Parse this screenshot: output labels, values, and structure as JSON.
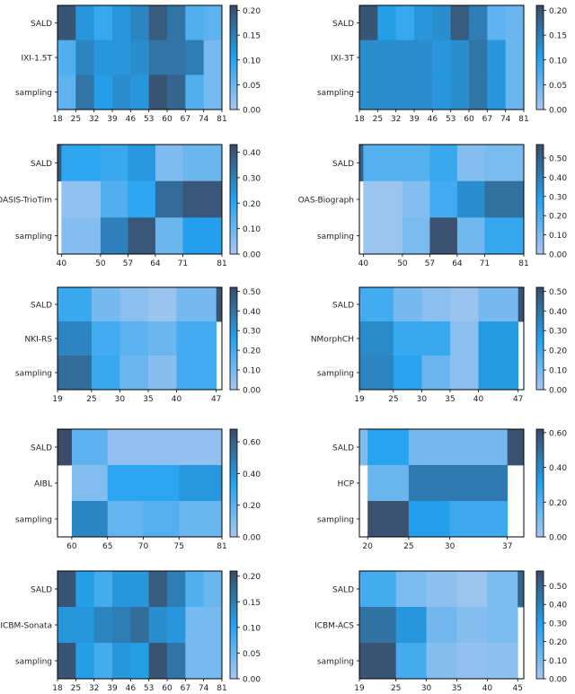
{
  "colors": {
    "low": "#a9c8ef",
    "mid": "#24a2ef",
    "high": "#3c4c66",
    "border": "#000000"
  },
  "chart_data": [
    {
      "type": "heatmap",
      "rows": [
        "SALD",
        "IXI-1.5T",
        "sampling"
      ],
      "x_edges": [
        18,
        25,
        32,
        39,
        46,
        53,
        60,
        67,
        74,
        81
      ],
      "x_ticks": [
        "18",
        "25",
        "32",
        "39",
        "46",
        "53",
        "60",
        "67",
        "74",
        "81"
      ],
      "colorbar_ticks": [
        "0.00",
        "0.05",
        "0.10",
        "0.15",
        "0.20"
      ],
      "vmax": 0.21,
      "values": [
        [
          0.2,
          0.12,
          0.09,
          0.12,
          0.14,
          0.19,
          0.16,
          0.07,
          0.06
        ],
        [
          0.07,
          0.14,
          0.12,
          0.12,
          0.13,
          0.16,
          0.16,
          0.15,
          0.04
        ],
        [
          0.06,
          0.16,
          0.11,
          0.13,
          0.12,
          0.2,
          0.18,
          0.07,
          0.04
        ]
      ]
    },
    {
      "type": "heatmap",
      "rows": [
        "SALD",
        "IXI-3T",
        "sampling"
      ],
      "x_edges": [
        18,
        25,
        32,
        39,
        46,
        53,
        60,
        67,
        74,
        81
      ],
      "x_ticks": [
        "18",
        "25",
        "32",
        "39",
        "46",
        "53",
        "60",
        "67",
        "74",
        "81"
      ],
      "colorbar_ticks": [
        "0.00",
        "0.05",
        "0.10",
        "0.15",
        "0.20"
      ],
      "vmax": 0.21,
      "values": [
        [
          0.2,
          0.11,
          0.09,
          0.12,
          0.13,
          0.19,
          0.15,
          0.06,
          0.05
        ],
        [
          0.13,
          0.13,
          0.13,
          0.13,
          0.12,
          0.13,
          0.16,
          0.12,
          0.05
        ],
        [
          0.13,
          0.13,
          0.13,
          0.13,
          0.12,
          0.13,
          0.16,
          0.12,
          0.05
        ]
      ]
    },
    {
      "type": "heatmap",
      "rows": [
        "SALD",
        "OASIS-TrioTim",
        "sampling"
      ],
      "x_edges": [
        39,
        40,
        50,
        57,
        64,
        71,
        81
      ],
      "x_ticks": [
        "40",
        "50",
        "57",
        "64",
        "71",
        "81"
      ],
      "colorbar_ticks": [
        "0.00",
        "0.10",
        "0.20",
        "0.30",
        "0.40"
      ],
      "vmax": 0.43,
      "values": [
        [
          0.4,
          0.2,
          0.18,
          0.24,
          0.07,
          0.1
        ],
        [
          null,
          0.04,
          0.14,
          0.2,
          0.35,
          0.4
        ],
        [
          null,
          0.06,
          0.3,
          0.4,
          0.1,
          0.22
        ]
      ]
    },
    {
      "type": "heatmap",
      "rows": [
        "SALD",
        "OAS-Biograph",
        "sampling"
      ],
      "x_edges": [
        39,
        40,
        50,
        57,
        64,
        71,
        81
      ],
      "x_ticks": [
        "40",
        "50",
        "57",
        "64",
        "71",
        "81"
      ],
      "colorbar_ticks": [
        "0.00",
        "0.10",
        "0.20",
        "0.30",
        "0.40",
        "0.50"
      ],
      "vmax": 0.57,
      "values": [
        [
          0.5,
          0.18,
          0.18,
          0.24,
          0.08,
          0.1
        ],
        [
          null,
          0.03,
          0.08,
          0.22,
          0.35,
          0.45
        ],
        [
          null,
          0.03,
          0.1,
          0.55,
          0.12,
          0.25
        ]
      ]
    },
    {
      "type": "heatmap",
      "rows": [
        "SALD",
        "NKI-RS",
        "sampling"
      ],
      "x_edges": [
        19,
        25,
        30,
        35,
        40,
        47,
        48
      ],
      "x_ticks": [
        "19",
        "25",
        "30",
        "35",
        "40",
        "47"
      ],
      "colorbar_ticks": [
        "0.00",
        "0.10",
        "0.20",
        "0.30",
        "0.40",
        "0.50"
      ],
      "vmax": 0.52,
      "values": [
        [
          0.22,
          0.1,
          0.06,
          0.03,
          0.1,
          0.5
        ],
        [
          0.35,
          0.2,
          0.15,
          0.12,
          0.2,
          null
        ],
        [
          0.42,
          0.22,
          0.12,
          0.07,
          0.2,
          null
        ]
      ]
    },
    {
      "type": "heatmap",
      "rows": [
        "SALD",
        "NMorphCH",
        "sampling"
      ],
      "x_edges": [
        19,
        25,
        30,
        35,
        40,
        47,
        48
      ],
      "x_ticks": [
        "19",
        "25",
        "30",
        "35",
        "40",
        "47"
      ],
      "colorbar_ticks": [
        "0.00",
        "0.10",
        "0.20",
        "0.30",
        "0.40",
        "0.50"
      ],
      "vmax": 0.52,
      "values": [
        [
          0.2,
          0.1,
          0.06,
          0.03,
          0.1,
          0.5
        ],
        [
          0.33,
          0.22,
          0.22,
          0.06,
          0.28,
          null
        ],
        [
          0.35,
          0.25,
          0.12,
          0.06,
          0.28,
          null
        ]
      ]
    },
    {
      "type": "heatmap",
      "rows": [
        "SALD",
        "AIBL",
        "sampling"
      ],
      "x_edges": [
        58,
        60,
        65,
        70,
        75,
        81
      ],
      "x_ticks": [
        "60",
        "65",
        "70",
        "75",
        "81"
      ],
      "colorbar_ticks": [
        "0.00",
        "0.20",
        "0.40",
        "0.60"
      ],
      "vmax": 0.68,
      "values": [
        [
          0.68,
          0.2,
          0.06,
          0.06,
          0.06
        ],
        [
          null,
          0.1,
          0.32,
          0.32,
          0.38
        ],
        [
          null,
          0.45,
          0.18,
          0.22,
          0.16
        ]
      ]
    },
    {
      "type": "heatmap",
      "rows": [
        "SALD",
        "HCP",
        "sampling"
      ],
      "x_edges": [
        19,
        20,
        25,
        30,
        37,
        39
      ],
      "x_ticks": [
        "20",
        "25",
        "30",
        "37"
      ],
      "colorbar_ticks": [
        "0.00",
        "0.20",
        "0.40",
        "0.60"
      ],
      "vmax": 0.62,
      "values": [
        [
          0.1,
          0.3,
          0.12,
          0.12,
          0.6
        ],
        [
          null,
          0.15,
          0.45,
          0.45,
          null
        ],
        [
          null,
          0.6,
          0.32,
          0.25,
          null
        ]
      ]
    },
    {
      "type": "heatmap",
      "rows": [
        "SALD",
        "ICBM-Sonata",
        "sampling"
      ],
      "x_edges": [
        18,
        25,
        32,
        39,
        46,
        53,
        60,
        67,
        74,
        81
      ],
      "x_ticks": [
        "18",
        "25",
        "32",
        "39",
        "46",
        "53",
        "60",
        "67",
        "74",
        "81"
      ],
      "colorbar_ticks": [
        "0.00",
        "0.05",
        "0.10",
        "0.15",
        "0.20"
      ],
      "vmax": 0.21,
      "values": [
        [
          0.2,
          0.11,
          0.08,
          0.12,
          0.12,
          0.19,
          0.15,
          0.07,
          0.05
        ],
        [
          0.12,
          0.12,
          0.14,
          0.15,
          0.17,
          0.13,
          0.12,
          0.04,
          0.04
        ],
        [
          0.2,
          0.11,
          0.08,
          0.12,
          0.11,
          0.2,
          0.16,
          0.04,
          0.04
        ]
      ]
    },
    {
      "type": "heatmap",
      "rows": [
        "SALD",
        "ICBM-ACS",
        "sampling"
      ],
      "x_edges": [
        19,
        25,
        30,
        35,
        40,
        45,
        46
      ],
      "x_ticks": [
        "19",
        "25",
        "30",
        "35",
        "40",
        "45"
      ],
      "colorbar_ticks": [
        "0.00",
        "0.10",
        "0.20",
        "0.30",
        "0.40",
        "0.50"
      ],
      "vmax": 0.58,
      "values": [
        [
          0.22,
          0.1,
          0.06,
          0.03,
          0.1,
          0.5
        ],
        [
          0.45,
          0.33,
          0.12,
          0.08,
          0.1,
          null
        ],
        [
          0.55,
          0.22,
          0.08,
          0.05,
          0.06,
          null
        ]
      ]
    }
  ]
}
